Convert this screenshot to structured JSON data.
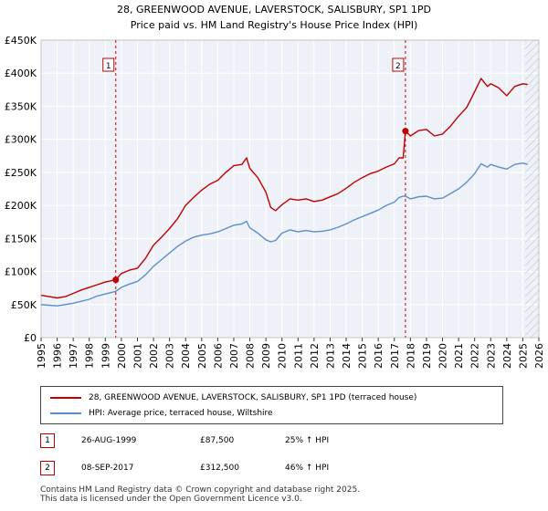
{
  "chart_data": {
    "type": "line",
    "title": "28, GREENWOOD AVENUE, LAVERSTOCK, SALISBURY, SP1 1PD",
    "subtitle": "Price paid vs. HM Land Registry's House Price Index (HPI)",
    "xlabel": "",
    "ylabel": "",
    "xlim": [
      1995,
      2026
    ],
    "ylim": [
      0,
      450000
    ],
    "grid": true,
    "x_ticks": [
      1995,
      1996,
      1997,
      1998,
      1999,
      2000,
      2001,
      2002,
      2003,
      2004,
      2005,
      2006,
      2007,
      2008,
      2009,
      2010,
      2011,
      2012,
      2013,
      2014,
      2015,
      2016,
      2017,
      2018,
      2019,
      2020,
      2021,
      2022,
      2023,
      2024,
      2025,
      2026
    ],
    "y_ticks": [
      {
        "value": 0,
        "label": "£0"
      },
      {
        "value": 50000,
        "label": "£50K"
      },
      {
        "value": 100000,
        "label": "£100K"
      },
      {
        "value": 150000,
        "label": "£150K"
      },
      {
        "value": 200000,
        "label": "£200K"
      },
      {
        "value": 250000,
        "label": "£250K"
      },
      {
        "value": 300000,
        "label": "£300K"
      },
      {
        "value": 350000,
        "label": "£350K"
      },
      {
        "value": 400000,
        "label": "£400K"
      },
      {
        "value": 450000,
        "label": "£450K"
      }
    ],
    "series": [
      {
        "name": "28, GREENWOOD AVENUE, LAVERSTOCK, SALISBURY, SP1 1PD (terraced house)",
        "color": "#c00000",
        "x": [
          1995.0,
          1995.5,
          1996.0,
          1996.5,
          1997.0,
          1997.5,
          1998.0,
          1998.5,
          1999.0,
          1999.65,
          2000.0,
          2000.5,
          2001.0,
          2001.5,
          2002.0,
          2002.5,
          2003.0,
          2003.5,
          2004.0,
          2004.5,
          2005.0,
          2005.5,
          2006.0,
          2006.5,
          2007.0,
          2007.5,
          2007.8,
          2008.0,
          2008.5,
          2009.0,
          2009.3,
          2009.6,
          2010.0,
          2010.5,
          2011.0,
          2011.5,
          2012.0,
          2012.5,
          2013.0,
          2013.5,
          2014.0,
          2014.5,
          2015.0,
          2015.5,
          2016.0,
          2016.5,
          2017.0,
          2017.3,
          2017.55,
          2017.69,
          2018.0,
          2018.5,
          2019.0,
          2019.5,
          2020.0,
          2020.5,
          2021.0,
          2021.5,
          2022.0,
          2022.4,
          2022.8,
          2023.0,
          2023.5,
          2024.0,
          2024.5,
          2025.0,
          2025.3
        ],
        "y": [
          64000,
          62000,
          60000,
          62000,
          67000,
          72000,
          76000,
          80000,
          84000,
          87500,
          97000,
          102000,
          105000,
          120000,
          140000,
          152000,
          165000,
          180000,
          200000,
          212000,
          223000,
          232000,
          238000,
          250000,
          260000,
          262000,
          272000,
          256000,
          242000,
          220000,
          197000,
          192000,
          201000,
          210000,
          208000,
          210000,
          206000,
          208000,
          213000,
          218000,
          226000,
          235000,
          242000,
          248000,
          252000,
          258000,
          263000,
          272000,
          272000,
          312500,
          305000,
          313000,
          315000,
          305000,
          308000,
          320000,
          335000,
          348000,
          372000,
          392000,
          380000,
          384000,
          378000,
          366000,
          380000,
          384000,
          383000
        ]
      },
      {
        "name": "HPI: Average price, terraced house, Wiltshire",
        "color": "#5b8ec9",
        "x": [
          1995.0,
          1995.5,
          1996.0,
          1996.5,
          1997.0,
          1997.5,
          1998.0,
          1998.5,
          1999.0,
          1999.65,
          2000.0,
          2000.5,
          2001.0,
          2001.5,
          2002.0,
          2002.5,
          2003.0,
          2003.5,
          2004.0,
          2004.5,
          2005.0,
          2005.5,
          2006.0,
          2006.5,
          2007.0,
          2007.5,
          2007.8,
          2008.0,
          2008.5,
          2009.0,
          2009.3,
          2009.6,
          2010.0,
          2010.5,
          2011.0,
          2011.5,
          2012.0,
          2012.5,
          2013.0,
          2013.5,
          2014.0,
          2014.5,
          2015.0,
          2015.5,
          2016.0,
          2016.5,
          2017.0,
          2017.3,
          2017.55,
          2017.69,
          2018.0,
          2018.5,
          2019.0,
          2019.5,
          2020.0,
          2020.5,
          2021.0,
          2021.5,
          2022.0,
          2022.4,
          2022.8,
          2023.0,
          2023.5,
          2024.0,
          2024.5,
          2025.0,
          2025.3
        ],
        "y": [
          50000,
          49000,
          48000,
          50000,
          52000,
          55000,
          58000,
          63000,
          66000,
          70000,
          76000,
          81000,
          85000,
          95000,
          108000,
          118000,
          128000,
          138000,
          146000,
          152000,
          155000,
          157000,
          160000,
          165000,
          170000,
          172000,
          176000,
          166000,
          158000,
          148000,
          145000,
          147000,
          158000,
          163000,
          160000,
          162000,
          160000,
          161000,
          163000,
          167000,
          172000,
          178000,
          183000,
          188000,
          193000,
          200000,
          205000,
          212000,
          214000,
          214000,
          210000,
          213000,
          214000,
          210000,
          211000,
          218000,
          225000,
          235000,
          248000,
          263000,
          258000,
          262000,
          258000,
          255000,
          262000,
          264000,
          262000
        ]
      }
    ],
    "annotations": [
      {
        "label": "1",
        "x": 1999.65,
        "y": 87500
      },
      {
        "label": "2",
        "x": 2017.69,
        "y": 312500
      }
    ]
  },
  "legend": {
    "items": [
      {
        "label": "28, GREENWOOD AVENUE, LAVERSTOCK, SALISBURY, SP1 1PD (terraced house)",
        "color": "#c00000"
      },
      {
        "label": "HPI: Average price, terraced house, Wiltshire",
        "color": "#5b8ec9"
      }
    ]
  },
  "transactions": [
    {
      "num": "1",
      "date": "26-AUG-1999",
      "price": "£87,500",
      "hpi": "25% ↑ HPI"
    },
    {
      "num": "2",
      "date": "08-SEP-2017",
      "price": "£312,500",
      "hpi": "46% ↑ HPI"
    }
  ],
  "footer": {
    "line1": "Contains HM Land Registry data © Crown copyright and database right 2025.",
    "line2": "This data is licensed under the Open Government Licence v3.0."
  }
}
